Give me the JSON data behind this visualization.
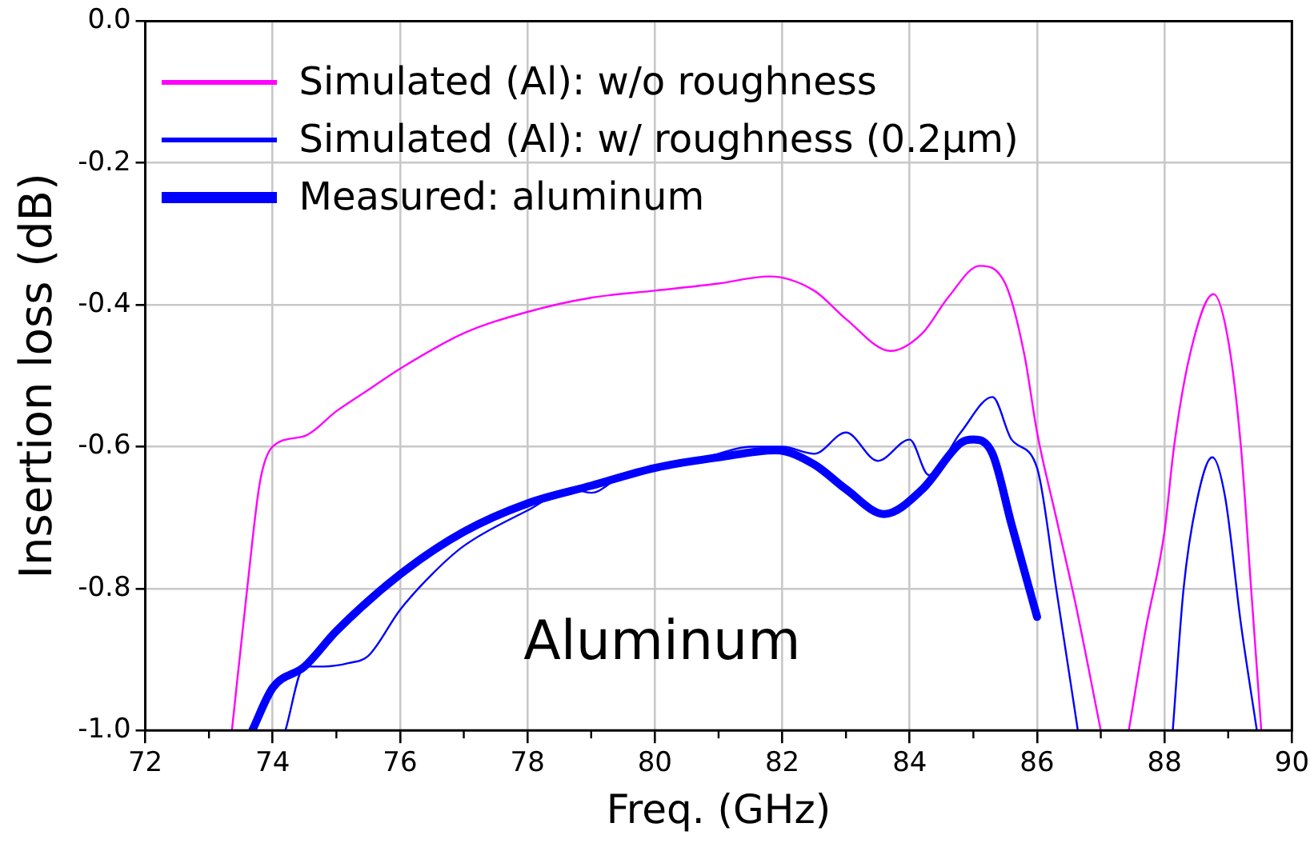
{
  "chart_data": {
    "type": "line",
    "xlabel": "Freq. (GHz)",
    "ylabel": "Insertion loss (dB)",
    "xlim": [
      72,
      90
    ],
    "xticks": [
      72,
      74,
      76,
      78,
      80,
      82,
      84,
      86,
      88,
      90
    ],
    "ylim": [
      -1.0,
      0.0
    ],
    "yticks": [
      {
        "value": -1.0,
        "label": "-1.0"
      },
      {
        "value": -0.8,
        "label": "-0.8"
      },
      {
        "value": -0.6,
        "label": "-0.6"
      },
      {
        "value": -0.4,
        "label": "-0.4"
      },
      {
        "value": -0.2,
        "label": "-0.2"
      },
      {
        "value": 0.0,
        "label": "0.0"
      }
    ],
    "grid": true,
    "legend": "top left",
    "marker": "none",
    "annotations": [
      "Aluminum"
    ],
    "series": [
      {
        "name": "Simulated (Al): w/o roughness",
        "color": "#ff00ff",
        "x": [
          73.36,
          73.6,
          73.8,
          74.0,
          74.5,
          75,
          75.5,
          76,
          77,
          78,
          79,
          80,
          81,
          81.8,
          82.5,
          83,
          83.7,
          84.2,
          84.6,
          85.1,
          85.5,
          85.8,
          86.0,
          86.3,
          86.6,
          87.0,
          null,
          87.44,
          87.7,
          88.0,
          88.15,
          88.4,
          88.77,
          89.0,
          89.2,
          89.36,
          89.52
        ],
        "values": [
          -1.0,
          -0.8,
          -0.65,
          -0.6,
          -0.585,
          -0.55,
          -0.52,
          -0.49,
          -0.44,
          -0.41,
          -0.39,
          -0.38,
          -0.37,
          -0.36,
          -0.38,
          -0.42,
          -0.465,
          -0.44,
          -0.39,
          -0.345,
          -0.37,
          -0.47,
          -0.58,
          -0.7,
          -0.82,
          -1.0,
          null,
          -1.0,
          -0.86,
          -0.72,
          -0.6,
          -0.47,
          -0.385,
          -0.45,
          -0.6,
          -0.8,
          -1.0
        ]
      },
      {
        "name": "Simulated (Al): w/ roughness (0.2μm)",
        "color": "#0000ff",
        "x": [
          74.2,
          74.5,
          74.8,
          75.2,
          75.5,
          76,
          76.5,
          77,
          78,
          78.7,
          79,
          79.5,
          80,
          80.5,
          81,
          81.5,
          82,
          82.5,
          83,
          83.5,
          84,
          84.3,
          84.8,
          85.3,
          85.6,
          86,
          86.3,
          86.64,
          null,
          88.13,
          88.3,
          88.5,
          88.75,
          88.95,
          89.2,
          89.45
        ],
        "values": [
          -1.0,
          -0.91,
          -0.91,
          -0.905,
          -0.895,
          -0.83,
          -0.78,
          -0.74,
          -0.69,
          -0.66,
          -0.665,
          -0.64,
          -0.63,
          -0.625,
          -0.61,
          -0.6,
          -0.6,
          -0.61,
          -0.58,
          -0.62,
          -0.59,
          -0.64,
          -0.58,
          -0.53,
          -0.59,
          -0.63,
          -0.8,
          -1.0,
          null,
          -1.0,
          -0.8,
          -0.68,
          -0.615,
          -0.67,
          -0.85,
          -1.0
        ]
      },
      {
        "name": "Measured: aluminum",
        "color": "#0000ff",
        "x": [
          73.68,
          74.0,
          74.5,
          75,
          76,
          77,
          78,
          79,
          80,
          81,
          81.9,
          82.5,
          83,
          83.6,
          84.2,
          84.8,
          85.0,
          85.3,
          85.6,
          86.0
        ],
        "values": [
          -1.0,
          -0.94,
          -0.91,
          -0.86,
          -0.78,
          -0.72,
          -0.68,
          -0.655,
          -0.63,
          -0.615,
          -0.605,
          -0.625,
          -0.66,
          -0.695,
          -0.66,
          -0.595,
          -0.59,
          -0.61,
          -0.71,
          -0.84
        ]
      }
    ]
  }
}
